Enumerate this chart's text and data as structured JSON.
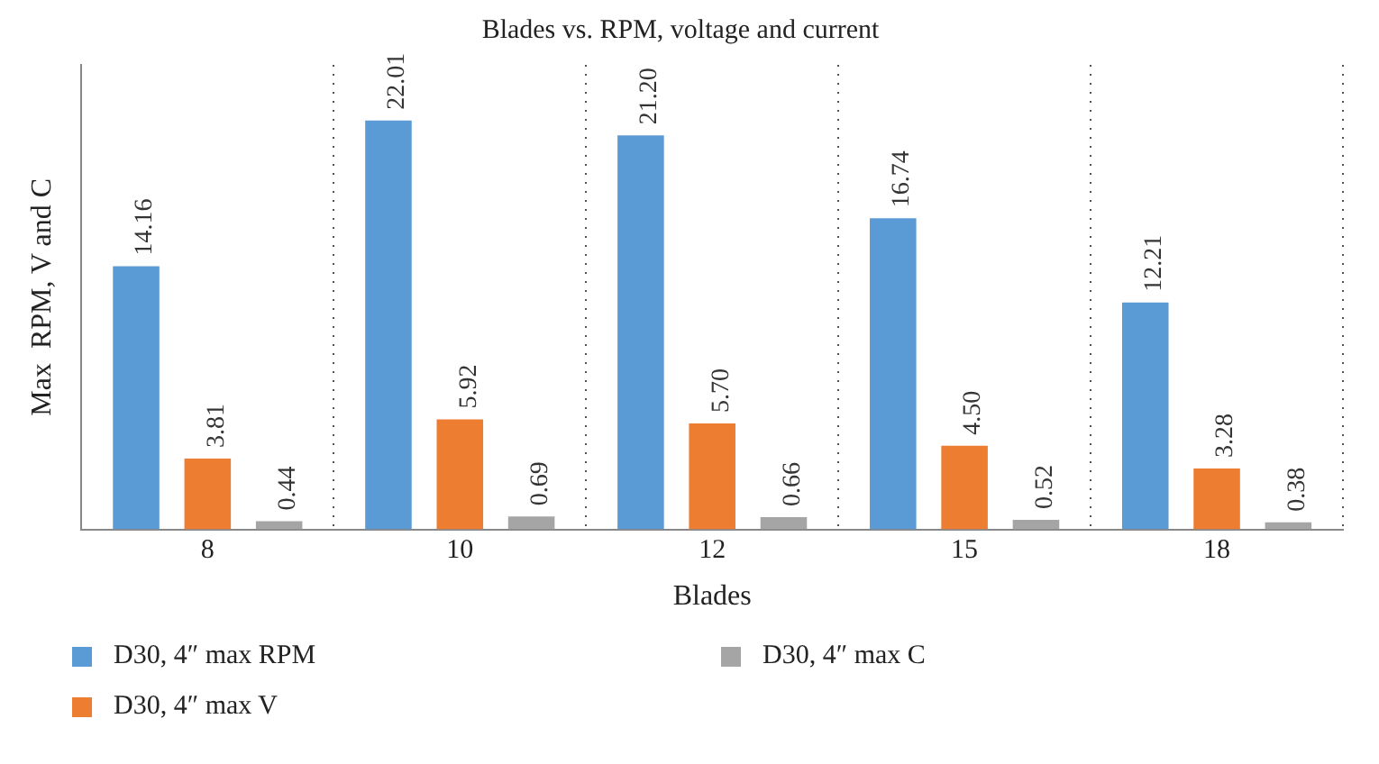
{
  "chart_data": {
    "type": "bar",
    "title": "Blades vs. RPM, voltage and current",
    "xlabel": "Blades",
    "ylabel": "Max  RPM, V and C",
    "categories": [
      "8",
      "10",
      "12",
      "15",
      "18"
    ],
    "series": [
      {
        "name": "D30, 4″ max RPM",
        "color": "#5b9bd5",
        "values": [
          14.16,
          22.01,
          21.2,
          16.74,
          12.21
        ],
        "value_labels": [
          "14.16",
          "22.01",
          "21.20",
          "16.74",
          "12.21"
        ]
      },
      {
        "name": "D30, 4″ max V",
        "color": "#ed7d31",
        "values": [
          3.81,
          5.92,
          5.7,
          4.5,
          3.28
        ],
        "value_labels": [
          "3.81",
          "5.92",
          "5.70",
          "4.50",
          "3.28"
        ]
      },
      {
        "name": "D30, 4″ max C",
        "color": "#a5a5a5",
        "values": [
          0.44,
          0.69,
          0.66,
          0.52,
          0.38
        ],
        "value_labels": [
          "0.44",
          "0.69",
          "0.66",
          "0.52",
          "0.38"
        ]
      }
    ],
    "grid": "x",
    "legend": "bottom"
  }
}
